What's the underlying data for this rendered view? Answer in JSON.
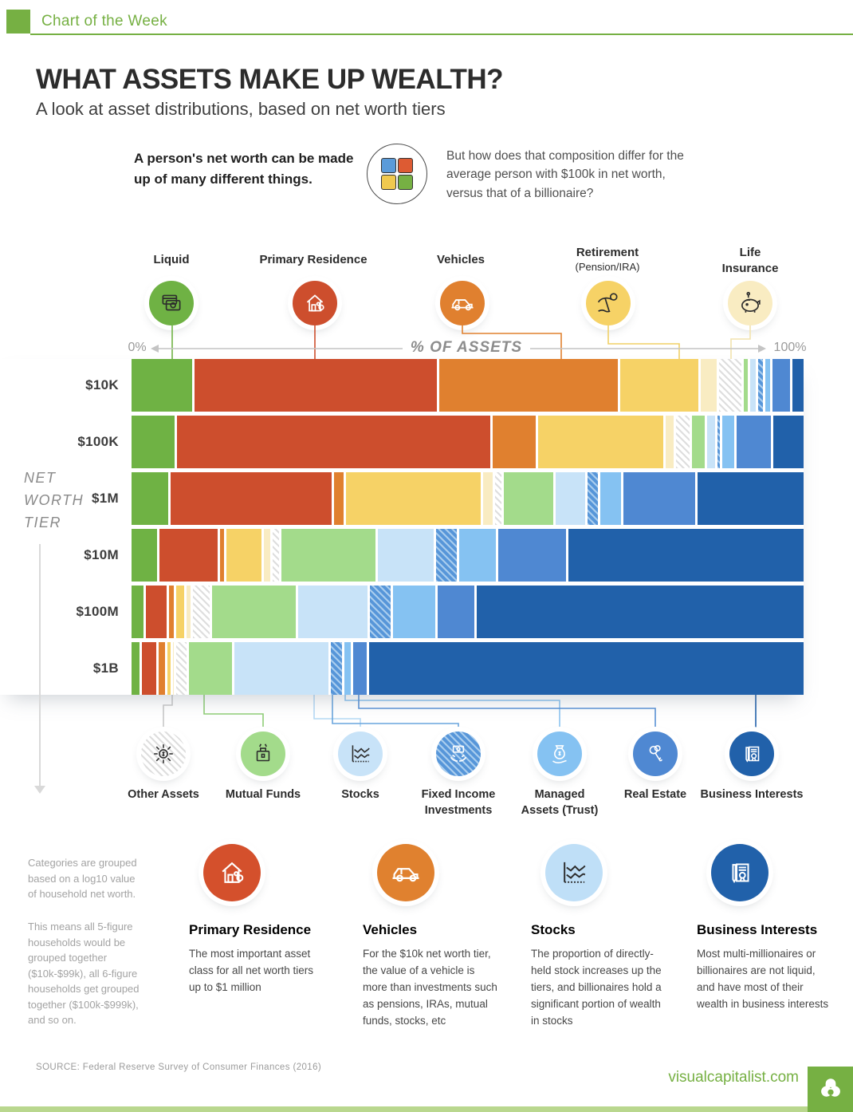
{
  "brand": {
    "green": "#76b043"
  },
  "header": {
    "label": "Chart of the Week"
  },
  "title": "WHAT ASSETS MAKE UP WEALTH?",
  "subtitle": "A look at asset distributions, based on net worth tiers",
  "intro": {
    "left": "A person's net worth can be made up of many different things.",
    "right": "But how does that composition differ for the average person with $100k in net worth, versus that of a billionaire?"
  },
  "axis": {
    "left": "0%",
    "center": "% OF ASSETS",
    "right": "100%"
  },
  "row_axis": {
    "lines": [
      "NET",
      "WORTH",
      "TIER"
    ]
  },
  "legend_top": [
    {
      "lines": [
        "Liquid"
      ],
      "color": "#6fb244"
    },
    {
      "lines": [
        "Primary Residence"
      ],
      "color": "#cd4e2d"
    },
    {
      "lines": [
        "Vehicles"
      ],
      "color": "#e0802f"
    },
    {
      "lines": [
        "Retirement",
        "(Pension/IRA)"
      ],
      "color": "#f6d266"
    },
    {
      "lines": [
        "Life",
        "Insurance"
      ],
      "color": "#f9ecc2"
    }
  ],
  "legend_bottom": [
    {
      "lines": [
        "Other Assets"
      ],
      "pattern": "hatch-gray"
    },
    {
      "lines": [
        "Mutual Funds"
      ],
      "color": "#a3db8b"
    },
    {
      "lines": [
        "Stocks"
      ],
      "color": "#c8e3f8"
    },
    {
      "lines": [
        "Fixed Income",
        "Investments"
      ],
      "pattern": "hatch-blue"
    },
    {
      "lines": [
        "Managed",
        "Assets (Trust)"
      ],
      "color": "#85c2f2"
    },
    {
      "lines": [
        "Real Estate"
      ],
      "color": "#4f88d2"
    },
    {
      "lines": [
        "Business Interests"
      ],
      "color": "#2161aa"
    }
  ],
  "chart_data": {
    "type": "bar",
    "variant": "horizontal-stacked-100pct",
    "title": "% OF ASSETS",
    "row_axis_label": "NET WORTH TIER",
    "xlim": [
      0,
      100
    ],
    "categories": [
      "$10K",
      "$100K",
      "$1M",
      "$10M",
      "$100M",
      "$1B"
    ],
    "series": [
      {
        "name": "Liquid",
        "color": "#6fb244",
        "values": [
          9.4,
          6.6,
          5.7,
          4.0,
          1.8,
          1.2
        ]
      },
      {
        "name": "Primary Residence",
        "color": "#cd4e2d",
        "values": [
          37.8,
          48.3,
          24.8,
          9.0,
          3.3,
          2.2
        ]
      },
      {
        "name": "Vehicles",
        "color": "#e0802f",
        "values": [
          27.8,
          6.6,
          1.5,
          0.6,
          0.7,
          1.1
        ]
      },
      {
        "name": "Retirement (Pension/IRA)",
        "color": "#f6d266",
        "values": [
          12.2,
          19.3,
          20.9,
          5.4,
          1.2,
          0.4
        ]
      },
      {
        "name": "Life Insurance",
        "color": "#f9ecc2",
        "values": [
          2.5,
          1.3,
          1.4,
          1.0,
          0.6,
          0.2
        ]
      },
      {
        "name": "Other Assets",
        "color": "#e3e3e3",
        "pattern": "hatch-gray",
        "values": [
          3.4,
          2.1,
          1.0,
          1.0,
          2.6,
          1.6
        ]
      },
      {
        "name": "Mutual Funds",
        "color": "#a3db8b",
        "values": [
          0.7,
          1.9,
          7.6,
          14.5,
          13.0,
          6.7
        ]
      },
      {
        "name": "Stocks",
        "color": "#c8e3f8",
        "values": [
          0.8,
          1.2,
          4.6,
          8.7,
          10.7,
          14.5
        ]
      },
      {
        "name": "Fixed Income Investments",
        "color": "#5796d9",
        "pattern": "hatch-blue",
        "values": [
          0.8,
          0.4,
          1.6,
          3.1,
          3.2,
          1.8
        ]
      },
      {
        "name": "Managed Assets (Trust)",
        "color": "#85c2f2",
        "values": [
          0.7,
          1.8,
          3.2,
          5.7,
          6.6,
          1.0
        ]
      },
      {
        "name": "Real Estate",
        "color": "#4f88d2",
        "values": [
          2.8,
          5.3,
          11.1,
          10.5,
          5.6,
          2.0
        ]
      },
      {
        "name": "Business Interests",
        "color": "#2161aa",
        "values": [
          1.7,
          4.7,
          16.4,
          36.4,
          50.6,
          67.4
        ]
      }
    ]
  },
  "notes": {
    "para1": "Categories are grouped based on a log10 value of household net worth.",
    "para2": "This means all 5-figure households would be grouped together ($10k-$99k), all 6-figure households get grouped together ($100k-$999k), and so on."
  },
  "cards": [
    {
      "title": "Primary Residence",
      "color": "#d4502c",
      "body": "The most important asset class for all net worth tiers up to $1 million"
    },
    {
      "title": "Vehicles",
      "color": "#e0812f",
      "body": "For the $10k net worth tier, the value of a vehicle is more than investments such as pensions, IRAs, mutual funds, stocks, etc"
    },
    {
      "title": "Stocks",
      "color": "#a9d3f1",
      "body": "The proportion of directly-held stock increases up the tiers, and billionaires hold a significant portion of wealth in stocks"
    },
    {
      "title": "Business Interests",
      "color": "#2a68b2",
      "body": "Most multi-millionaires or billionaires are not liquid, and have most of their wealth in business interests"
    }
  ],
  "footer": {
    "source": "SOURCE: Federal Reserve Survey of Consumer Finances (2016)",
    "site": "visualcapitalist.com"
  }
}
